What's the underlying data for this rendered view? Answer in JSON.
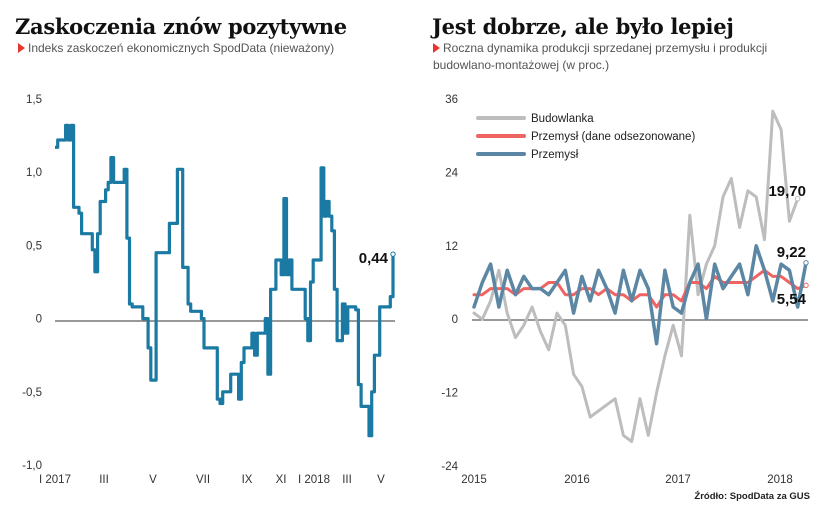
{
  "colors": {
    "left_line": "#1b7aa3",
    "budowlanka": "#bdbdbd",
    "przemysl_sa": "#f06363",
    "przemysl": "#5b87a4",
    "accent": "#e8362d"
  },
  "left": {
    "title": "Zaskoczenia znów pozytywne",
    "subtitle": "Indeks zaskoczeń ekonomicznych SpodData (nieważony)"
  },
  "right": {
    "title": "Jest dobrze, ale było lepiej",
    "subtitle_line1": "Roczna dynamika produkcji sprzedanej przemysłu i produkcji",
    "subtitle_line2": "budowlano-montażowej (w proc.)"
  },
  "source": "Źródło: SpodData za GUS",
  "chart_data": [
    {
      "type": "line",
      "title": "Zaskoczenia znów pozytywne",
      "subtitle": "Indeks zaskoczeń ekonomicznych SpodData (nieważony)",
      "ylim": [
        -1.0,
        1.5
      ],
      "yticks": [
        "1,5",
        "1,0",
        "0,5",
        "0",
        "-0,5",
        "-1,0"
      ],
      "ytick_values": [
        1.5,
        1.0,
        0.5,
        0,
        -0.5,
        -1.0
      ],
      "xticks": [
        "I 2017",
        "III",
        "V",
        "VII",
        "IX",
        "XI",
        "I 2018",
        "III",
        "V"
      ],
      "annotation": "0,44",
      "series": [
        {
          "values": [
            1.17,
            1.22,
            1.22,
            1.22,
            1.32,
            1.22,
            1.32,
            0.76,
            0.76,
            0.72,
            0.58,
            0.58,
            0.58,
            0.58,
            0.47,
            0.32,
            0.58,
            0.8,
            0.8,
            0.88,
            0.93,
            1.1,
            0.93,
            0.93,
            0.93,
            0.93,
            1.02,
            0.55,
            0.1,
            0.08,
            0.08,
            0.08,
            0.08,
            0.0,
            0.0,
            -0.2,
            -0.42,
            -0.42,
            0.45,
            0.45,
            0.45,
            0.45,
            0.45,
            0.65,
            0.65,
            0.65,
            1.02,
            1.02,
            0.35,
            0.35,
            0.1,
            0.05,
            0.05,
            0.05,
            0.05,
            0.0,
            -0.2,
            -0.2,
            -0.2,
            -0.2,
            -0.2,
            -0.55,
            -0.58,
            -0.5,
            -0.5,
            -0.5,
            -0.38,
            -0.38,
            -0.38,
            -0.55,
            -0.3,
            -0.2,
            -0.2,
            -0.2,
            -0.1,
            -0.25,
            -0.1,
            -0.1,
            -0.1,
            0.0,
            -0.38,
            0.2,
            0.2,
            0.4,
            0.4,
            0.3,
            0.82,
            0.3,
            0.4,
            0.2,
            0.2,
            0.2,
            0.2,
            0.2,
            0.0,
            -0.15,
            0.25,
            0.4,
            0.4,
            0.4,
            1.03,
            0.7,
            0.8,
            0.7,
            0.6,
            0.2,
            -0.15,
            -0.15,
            0.1,
            -0.1,
            0.08,
            0.08,
            0.08,
            0.06,
            -0.45,
            -0.6,
            -0.6,
            -0.6,
            -0.8,
            -0.5,
            -0.25,
            -0.25,
            0.08,
            0.08,
            0.08,
            0.08,
            0.15,
            0.44
          ]
        }
      ]
    },
    {
      "type": "line",
      "title": "Jest dobrze, ale było lepiej",
      "subtitle": "Roczna dynamika produkcji sprzedanej przemysłu i produkcji budowlano-montażowej (w proc.)",
      "ylim": [
        -24,
        36
      ],
      "yticks": [
        "36",
        "24",
        "12",
        "0",
        "-12",
        "-24"
      ],
      "ytick_values": [
        36,
        24,
        12,
        0,
        -12,
        -24
      ],
      "xticks": [
        "2015",
        "2016",
        "2017",
        "2018"
      ],
      "x": [
        "2015-01",
        "2015-02",
        "2015-03",
        "2015-04",
        "2015-05",
        "2015-06",
        "2015-07",
        "2015-08",
        "2015-09",
        "2015-10",
        "2015-11",
        "2015-12",
        "2016-01",
        "2016-02",
        "2016-03",
        "2016-04",
        "2016-05",
        "2016-06",
        "2016-07",
        "2016-08",
        "2016-09",
        "2016-10",
        "2016-11",
        "2016-12",
        "2017-01",
        "2017-02",
        "2017-03",
        "2017-04",
        "2017-05",
        "2017-06",
        "2017-07",
        "2017-08",
        "2017-09",
        "2017-10",
        "2017-11",
        "2017-12",
        "2018-01",
        "2018-02",
        "2018-03",
        "2018-04",
        "2018-05"
      ],
      "series": [
        {
          "name": "Budowlanka",
          "values": [
            1,
            0,
            3,
            8,
            1,
            -3,
            -1,
            2,
            -2,
            -5,
            1,
            -1,
            -9,
            -11,
            -16,
            -15,
            -14,
            -13,
            -19,
            -20,
            -13,
            -19,
            -12,
            -6,
            -1,
            -6,
            17,
            4,
            9,
            12,
            20,
            23,
            15,
            21,
            20,
            13,
            34,
            31,
            16,
            19.7,
            null
          ]
        },
        {
          "name": "Przemysł (dane odsezonowane)",
          "values": [
            4,
            4,
            5,
            5,
            5,
            4,
            5,
            5,
            5,
            6,
            6,
            4,
            4,
            5,
            5,
            4,
            5,
            4,
            4,
            3,
            4,
            4,
            2,
            4,
            4,
            3,
            6,
            6,
            5,
            7,
            6,
            6,
            6,
            6,
            7,
            8,
            7,
            7,
            6,
            5,
            5.54
          ]
        },
        {
          "name": "Przemysł",
          "values": [
            2,
            6,
            9,
            2,
            8,
            4,
            7,
            5,
            5,
            4,
            6,
            8,
            1,
            7,
            3,
            8,
            5,
            1,
            8,
            3,
            8,
            5,
            -4,
            8,
            2,
            1,
            6,
            9,
            0,
            9,
            5,
            7,
            9,
            4,
            12,
            8,
            3,
            9,
            8,
            2,
            9.22
          ]
        }
      ],
      "annotations": [
        "19,70",
        "9,22",
        "5,54"
      ]
    }
  ]
}
